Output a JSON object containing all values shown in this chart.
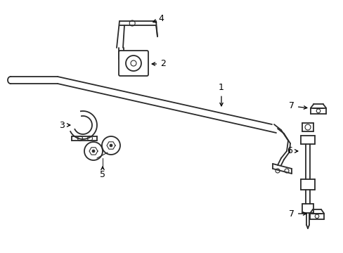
{
  "background": "#ffffff",
  "line_color": "#2a2a2a",
  "lw": 1.3,
  "lw_thin": 0.8,
  "figsize": [
    4.89,
    3.6
  ],
  "dpi": 100,
  "xlim": [
    0,
    489
  ],
  "ylim": [
    0,
    360
  ]
}
